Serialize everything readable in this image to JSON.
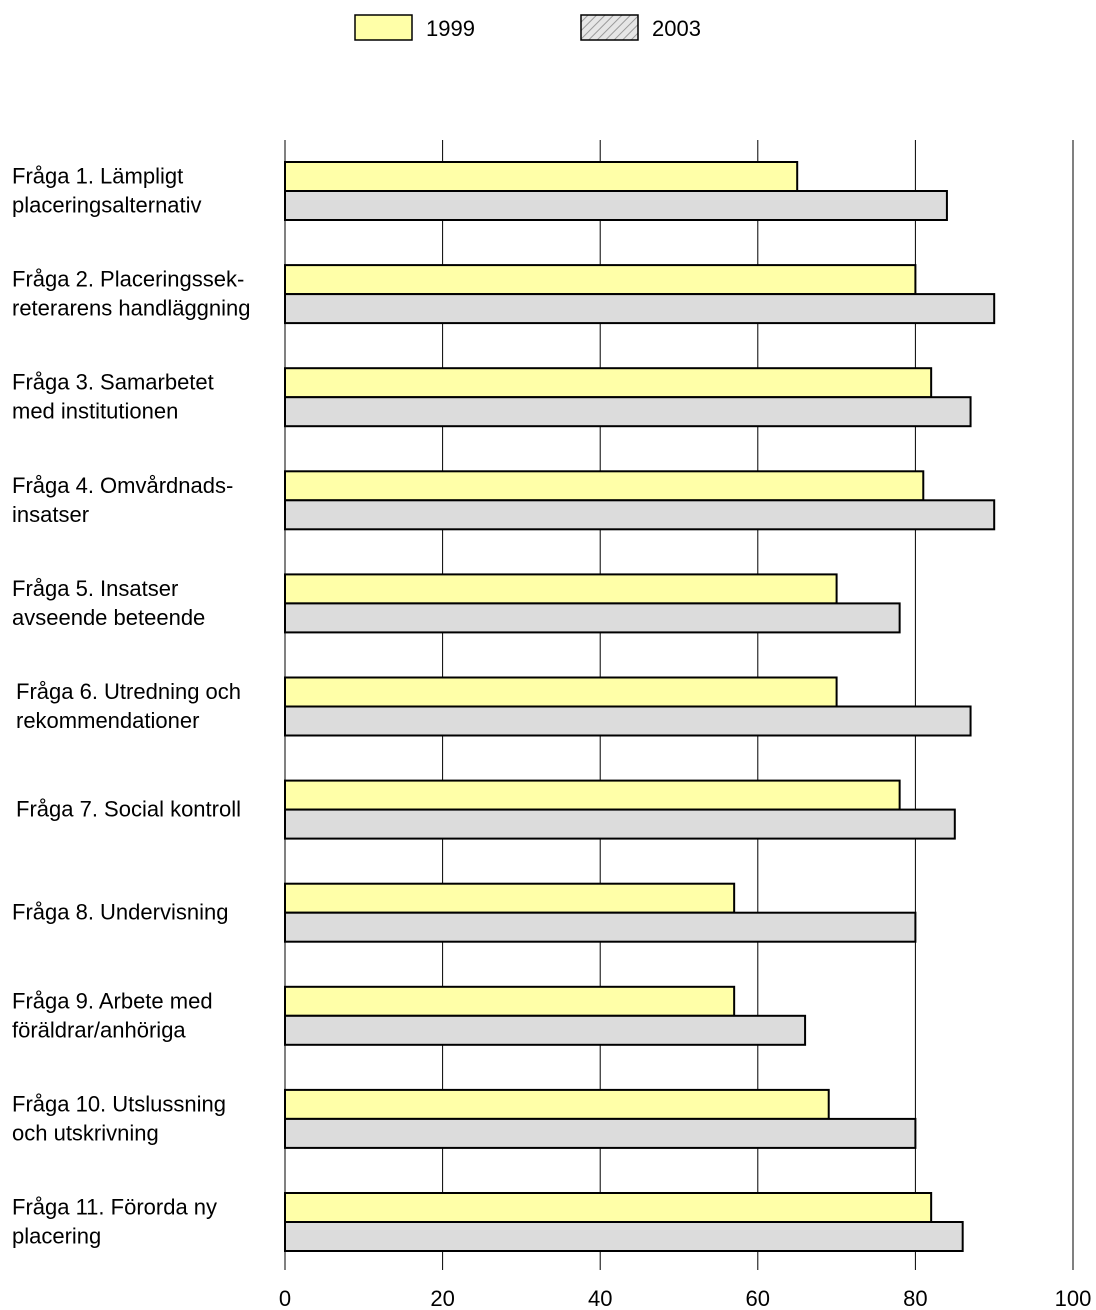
{
  "chart_data": {
    "type": "bar",
    "orientation": "horizontal",
    "title": "",
    "xlabel": "",
    "ylabel": "",
    "xlim": [
      0,
      100
    ],
    "x_ticks": [
      0,
      20,
      40,
      60,
      80,
      100
    ],
    "x_tick_labels": [
      "0",
      "20",
      "40",
      "60",
      "80",
      "100"
    ],
    "grid": "vertical",
    "legend_position": "top-center",
    "categories": [
      [
        "Fråga 1. Lämpligt",
        "placeringsalternativ"
      ],
      [
        "Fråga 2. Placeringssek-",
        "reterarens handläggning"
      ],
      [
        "Fråga 3. Samarbetet",
        "med institutionen"
      ],
      [
        "Fråga 4. Omvårdnads-",
        "insatser"
      ],
      [
        "Fråga 5. Insatser",
        "avseende beteende"
      ],
      [
        "Fråga 6. Utredning och",
        "rekommendationer"
      ],
      [
        "Fråga 7. Social kontroll"
      ],
      [
        "Fråga 8. Undervisning"
      ],
      [
        "Fråga 9. Arbete med",
        "föräldrar/anhöriga"
      ],
      [
        "Fråga 10. Utslussning",
        "och utskrivning"
      ],
      [
        "Fråga 11. Förorda ny",
        "placering"
      ]
    ],
    "series": [
      {
        "name": "1999",
        "color": "#FFFFA8",
        "values": [
          65,
          80,
          82,
          81,
          70,
          70,
          78,
          57,
          57,
          69,
          82
        ]
      },
      {
        "name": "2003",
        "color": "#DCDCDC",
        "values": [
          84,
          90,
          87,
          90,
          78,
          87,
          85,
          80,
          66,
          80,
          86
        ]
      }
    ]
  }
}
